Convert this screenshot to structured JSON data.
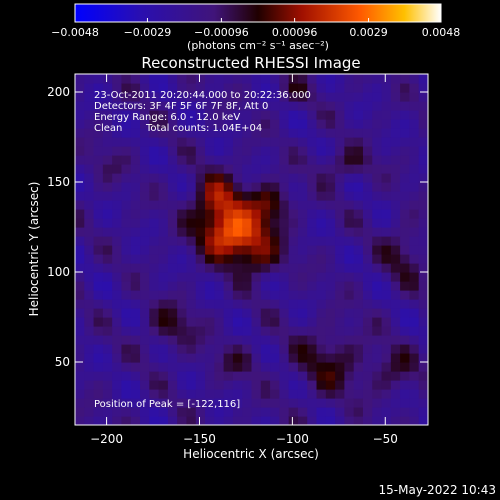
{
  "chart_data": {
    "type": "heatmap",
    "title": "Reconstructed RHESSI Image",
    "xlabel": "Heliocentric X (arcsec)",
    "ylabel": "Heliocentric Y (arcsec)",
    "xlim": [
      -217,
      -27
    ],
    "ylim": [
      15,
      210
    ],
    "xticks": [
      -200,
      -150,
      -100,
      -50
    ],
    "yticks": [
      50,
      100,
      150,
      200
    ],
    "colorbar": {
      "min": -0.0048,
      "max": 0.0048,
      "ticks": [
        -0.0048,
        -0.0029,
        -0.00096,
        0.00096,
        0.0029,
        0.0048
      ],
      "tick_labels": [
        "-0.0048",
        "-0.0029",
        "-0.00096",
        "0.00096",
        "0.0029",
        "0.0048"
      ],
      "unit_label": "(photons cm⁻² s⁻¹ asec⁻²)"
    },
    "annotations": {
      "time_range": "23-Oct-2011 20:20:44.000 to 20:22:36.000",
      "detectors": "Detectors: 3F 4F 5F 6F 7F 8F, Att 0",
      "energy": "Energy Range: 6.0 - 12.0 keV",
      "clean": "Clean",
      "total_counts": "Total counts: 1.04E+04",
      "peak": "Position of Peak = [-122,116]"
    },
    "peak": {
      "x": -122,
      "y": 116
    },
    "blobs": [
      {
        "x": -130,
        "y": 120,
        "sx": 12,
        "sy": 9,
        "amp": 0.0041
      },
      {
        "x": -140,
        "y": 138,
        "sx": 10,
        "sy": 11,
        "amp": 0.003
      },
      {
        "x": -112,
        "y": 138,
        "sx": 8,
        "sy": 8,
        "amp": 0.0022
      },
      {
        "x": -118,
        "y": 106,
        "sx": 9,
        "sy": 7,
        "amp": 0.0016
      },
      {
        "x": -72,
        "y": 160,
        "sx": 10,
        "sy": 6,
        "amp": 0.0014
      },
      {
        "x": -165,
        "y": 70,
        "sx": 10,
        "sy": 9,
        "amp": 0.0014
      },
      {
        "x": -80,
        "y": 50,
        "sx": 14,
        "sy": 14,
        "amp": 0.0015
      },
      {
        "x": -40,
        "y": 110,
        "sx": 8,
        "sy": 12,
        "amp": 0.0013
      },
      {
        "x": -130,
        "y": 50,
        "sx": 10,
        "sy": 7,
        "amp": 0.0009
      },
      {
        "x": -45,
        "y": 45,
        "sx": 9,
        "sy": 9,
        "amp": 0.0012
      },
      {
        "x": -200,
        "y": 160,
        "sx": 7,
        "sy": 7,
        "amp": 0.0007
      },
      {
        "x": -100,
        "y": 200,
        "sx": 8,
        "sy": 6,
        "amp": 0.0008
      }
    ]
  },
  "footer": {
    "timestamp": "15-May-2022 10:43"
  }
}
